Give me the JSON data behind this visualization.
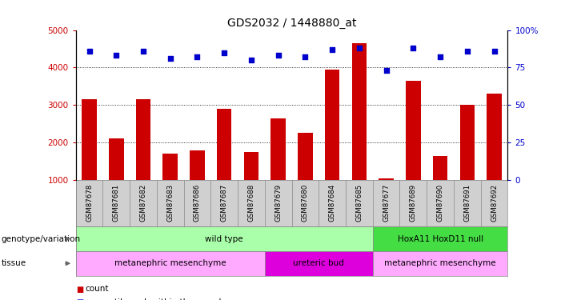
{
  "title": "GDS2032 / 1448880_at",
  "samples": [
    "GSM87678",
    "GSM87681",
    "GSM87682",
    "GSM87683",
    "GSM87686",
    "GSM87687",
    "GSM87688",
    "GSM87679",
    "GSM87680",
    "GSM87684",
    "GSM87685",
    "GSM87677",
    "GSM87689",
    "GSM87690",
    "GSM87691",
    "GSM87692"
  ],
  "counts": [
    3150,
    2100,
    3150,
    1700,
    1800,
    2900,
    1750,
    2650,
    2250,
    3950,
    4650,
    1050,
    3650,
    1650,
    3000,
    3300
  ],
  "percentile": [
    86,
    83,
    86,
    81,
    82,
    85,
    80,
    83,
    82,
    87,
    88,
    73,
    88,
    82,
    86,
    86
  ],
  "bar_color": "#cc0000",
  "dot_color": "#0000cc",
  "genotype_groups": [
    {
      "label": "wild type",
      "start": 0,
      "end": 10,
      "color": "#aaffaa"
    },
    {
      "label": "HoxA11 HoxD11 null",
      "start": 11,
      "end": 15,
      "color": "#44dd44"
    }
  ],
  "tissue_groups": [
    {
      "label": "metanephric mesenchyme",
      "start": 0,
      "end": 6,
      "color": "#ffaaff"
    },
    {
      "label": "ureteric bud",
      "start": 7,
      "end": 10,
      "color": "#dd00dd"
    },
    {
      "label": "metanephric mesenchyme",
      "start": 11,
      "end": 15,
      "color": "#ffaaff"
    }
  ],
  "sample_bg": "#d0d0d0",
  "right_ytick_labels": [
    "0",
    "25",
    "50",
    "75",
    "100%"
  ]
}
